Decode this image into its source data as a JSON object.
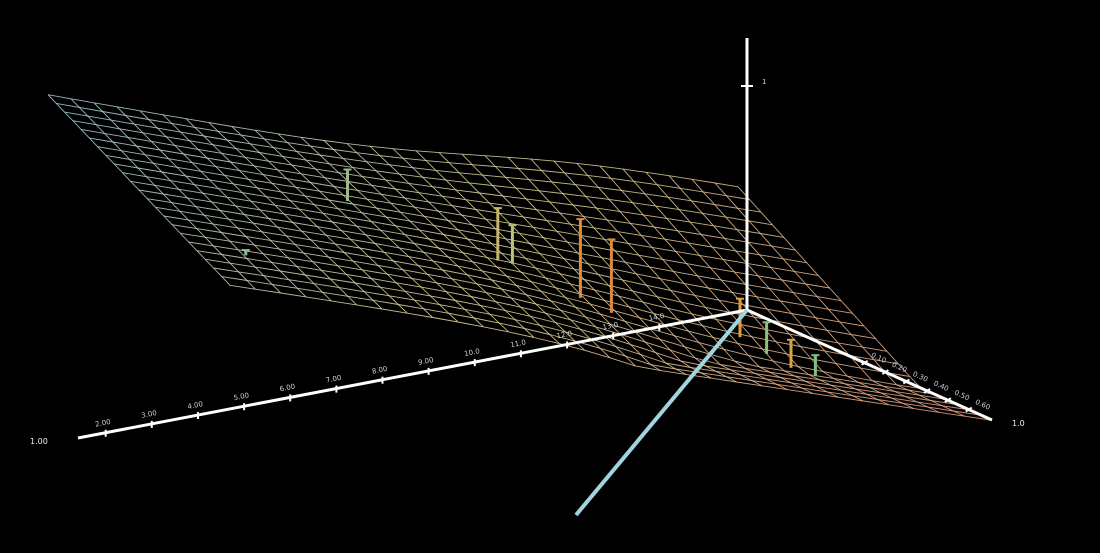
{
  "chart_data": {
    "type": "surface-3d",
    "title": "",
    "surface": {
      "description_of_shape": "",
      "x_rows": 30,
      "y_cols": 22,
      "height_low": 0.05,
      "height_high": 0.95
    },
    "colors": {
      "background": "#000000",
      "surface_low_end": "#a9d6e6",
      "surface_mid": "#e8dc9a",
      "surface_high_end": "#f0a58e",
      "axis_x": "#ffffff",
      "axis_z": "#ffffff",
      "axis_y": "#9fd4e0"
    },
    "x_axis": {
      "label_left": "1.00",
      "tick_labels": [
        "2.00",
        "3.00",
        "4.00",
        "5.00",
        "6.00",
        "7.00",
        "8.00",
        "9.00",
        "10.0",
        "11.0",
        "12.0",
        "13.0",
        "14.0"
      ]
    },
    "right_axis": {
      "label_end": "1.0",
      "tick_labels": [
        "0.10",
        "0.20",
        "0.30",
        "0.40",
        "0.50",
        "0.60"
      ]
    },
    "z_axis": {
      "tick_labels": [
        "1"
      ]
    },
    "stems": [
      {
        "u": 0.33,
        "v": 0.35,
        "h": 0.18,
        "color": "#9fb88a"
      },
      {
        "u": 0.48,
        "v": 0.55,
        "h": 0.3,
        "color": "#c7b46a"
      },
      {
        "u": 0.5,
        "v": 0.55,
        "h": 0.22,
        "color": "#b8c37a"
      },
      {
        "u": 0.56,
        "v": 0.66,
        "h": 0.45,
        "color": "#e08a3c"
      },
      {
        "u": 0.59,
        "v": 0.7,
        "h": 0.42,
        "color": "#d98a44"
      },
      {
        "u": 0.78,
        "v": 0.65,
        "h": 0.22,
        "color": "#e29a3e"
      },
      {
        "u": 0.8,
        "v": 0.7,
        "h": 0.18,
        "color": "#8fc07a"
      },
      {
        "u": 0.82,
        "v": 0.74,
        "h": 0.16,
        "color": "#d9a24a"
      },
      {
        "u": 0.84,
        "v": 0.78,
        "h": 0.12,
        "color": "#7fbf8a"
      },
      {
        "u": 0.07,
        "v": 0.8,
        "h": 0.03,
        "color": "#8fbf9a"
      }
    ]
  }
}
